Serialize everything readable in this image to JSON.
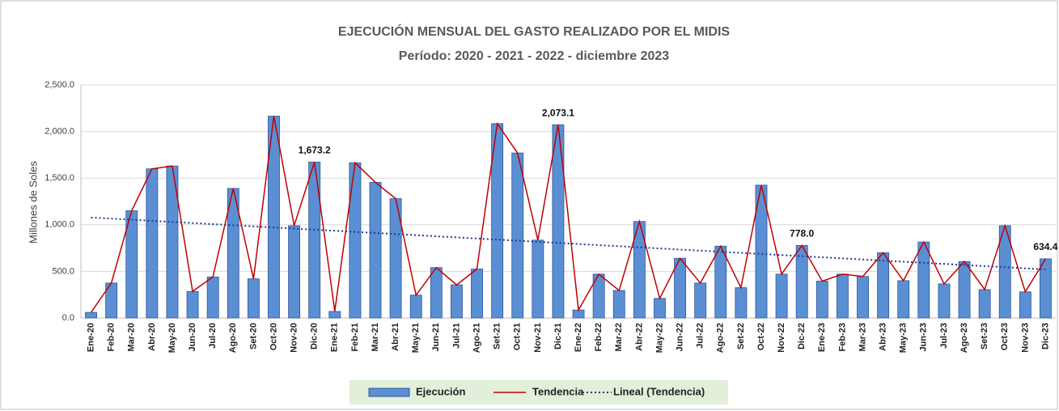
{
  "chart_data": {
    "type": "bar",
    "title": "EJECUCIÓN MENSUAL DEL GASTO REALIZADO POR EL MIDIS",
    "subtitle": "Período: 2020 - 2021 - 2022 - diciembre 2023",
    "y_label": "Millones de Soles",
    "categories": [
      "Ene-20",
      "Feb-20",
      "Mar-20",
      "Abr-20",
      "May-20",
      "Jun-20",
      "Jul-20",
      "Ago-20",
      "Set-20",
      "Oct-20",
      "Nov-20",
      "Dic-20",
      "Ene-21",
      "Feb-21",
      "Mar-21",
      "Abr-21",
      "May-21",
      "Jun-21",
      "Jul-21",
      "Ago-21",
      "Set-21",
      "Oct-21",
      "Nov-21",
      "Dic-21",
      "Ene-22",
      "Feb-22",
      "Mar-22",
      "Abr-22",
      "May-22",
      "Jun-22",
      "Jul-22",
      "Ago-22",
      "Set-22",
      "Oct-22",
      "Nov-22",
      "Dic-22",
      "Ene-23",
      "Feb-23",
      "Mar-23",
      "Abr-23",
      "May-23",
      "Jun-23",
      "Jul-23",
      "Ago-23",
      "Set-23",
      "Oct-23",
      "Nov-23",
      "Dic-23"
    ],
    "series": [
      {
        "name": "Ejecución",
        "type": "bar",
        "color": "#5b8fd4",
        "values": [
          60,
          375,
          1150,
          1600,
          1630,
          285,
          440,
          1390,
          420,
          2165,
          990,
          1673.2,
          70,
          1665,
          1455,
          1280,
          245,
          540,
          355,
          525,
          2085,
          1770,
          835,
          2073.1,
          85,
          470,
          295,
          1035,
          210,
          640,
          375,
          770,
          325,
          1425,
          470,
          778.0,
          395,
          470,
          445,
          700,
          400,
          815,
          365,
          605,
          305,
          990,
          280,
          634.4
        ],
        "value_labels": [
          null,
          null,
          null,
          null,
          null,
          null,
          null,
          null,
          null,
          null,
          null,
          "1,673.2",
          null,
          null,
          null,
          null,
          null,
          null,
          null,
          null,
          null,
          null,
          null,
          "2,073.1",
          null,
          null,
          null,
          null,
          null,
          null,
          null,
          null,
          null,
          null,
          null,
          "778.0",
          null,
          null,
          null,
          null,
          null,
          null,
          null,
          null,
          null,
          null,
          null,
          "634.4"
        ]
      },
      {
        "name": "Tendencia",
        "type": "line",
        "color": "#c00000",
        "values": [
          60,
          375,
          1150,
          1600,
          1630,
          285,
          440,
          1390,
          420,
          2165,
          990,
          1673.2,
          70,
          1665,
          1455,
          1280,
          245,
          540,
          355,
          525,
          2085,
          1770,
          835,
          2073.1,
          85,
          470,
          295,
          1035,
          210,
          640,
          375,
          770,
          325,
          1425,
          470,
          778.0,
          395,
          470,
          445,
          700,
          400,
          815,
          365,
          605,
          305,
          990,
          280,
          634.4
        ]
      },
      {
        "name": "Lineal (Tendencia)",
        "type": "trend",
        "trend": "linear",
        "of": 1,
        "color": "#1f3a93"
      }
    ],
    "ylim": [
      0,
      2500
    ],
    "yticks": [
      {
        "value": 0,
        "label": "0.0"
      },
      {
        "value": 500,
        "label": "500.0"
      },
      {
        "value": 1000,
        "label": "1,000.0"
      },
      {
        "value": 1500,
        "label": "1,500.0"
      },
      {
        "value": 2000,
        "label": "2,000.0"
      },
      {
        "value": 2500,
        "label": "2,500.0"
      }
    ],
    "grid": true,
    "legend": "bottom"
  }
}
